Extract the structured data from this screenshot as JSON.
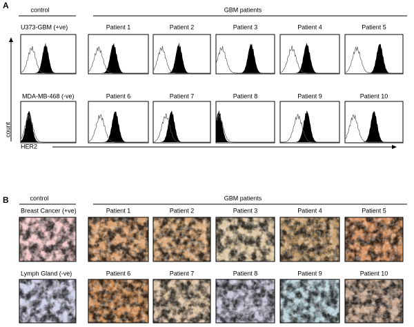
{
  "panel_a": {
    "label": "A",
    "control_header": "control",
    "patients_header": "GBM patients",
    "row1": {
      "control": "U373-GBM (+ve)",
      "patients": [
        "Patient 1",
        "Patient 2",
        "Patient 3",
        "Patient 4",
        "Patient 5"
      ]
    },
    "row2": {
      "control": "MDA-MB-468 (-ve)",
      "patients": [
        "Patient 6",
        "Patient 7",
        "Patient 8",
        "Patient 9",
        "Patient 10"
      ]
    },
    "y_axis": "count",
    "x_axis": "HER2"
  },
  "panel_b": {
    "label": "B",
    "control_header": "control",
    "patients_header": "GBM patients",
    "row1": {
      "control": "Breast Cancer (+ve)",
      "patients": [
        "Patient 1",
        "Patient 2",
        "Patient 3",
        "Patient 4",
        "Patient 5"
      ]
    },
    "row2": {
      "control": "Lymph Gland (-ve)",
      "patients": [
        "Patient 6",
        "Patient 7",
        "Patient 8",
        "Patient 9",
        "Patient 10"
      ]
    }
  }
}
